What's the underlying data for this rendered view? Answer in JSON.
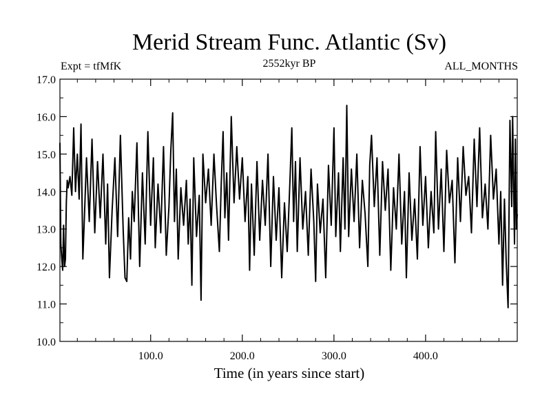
{
  "chart_data": {
    "type": "line",
    "title": "Merid Stream Func. Atlantic (Sv)",
    "subtitle_left": "Expt = tfMfK",
    "subtitle_center": "2552kyr BP",
    "subtitle_right": "ALL_MONTHS",
    "xlabel": "Time (in years since start)",
    "ylabel": "",
    "xlim": [
      1,
      500
    ],
    "ylim": [
      10.0,
      17.0
    ],
    "x_ticks": [
      {
        "value": 100,
        "label": "100.0"
      },
      {
        "value": 200,
        "label": "200.0"
      },
      {
        "value": 300,
        "label": "300.0"
      },
      {
        "value": 400,
        "label": "400.0"
      }
    ],
    "y_ticks": [
      {
        "value": 10,
        "label": "10.0"
      },
      {
        "value": 11,
        "label": "11.0"
      },
      {
        "value": 12,
        "label": "12.0"
      },
      {
        "value": 13,
        "label": "13.0"
      },
      {
        "value": 14,
        "label": "14.0"
      },
      {
        "value": 15,
        "label": "15.0"
      },
      {
        "value": 16,
        "label": "16.0"
      },
      {
        "value": 17,
        "label": "17.0"
      }
    ],
    "grid": false,
    "series": [
      {
        "name": "tfMfK",
        "color": "#000000",
        "points": [
          [
            1,
            15.3
          ],
          [
            2,
            12.6
          ],
          [
            3,
            12.2
          ],
          [
            4,
            11.9
          ],
          [
            5,
            13.1
          ],
          [
            6,
            12.0
          ],
          [
            7,
            12.2
          ],
          [
            8,
            13.7
          ],
          [
            9,
            14.3
          ],
          [
            10,
            14.1
          ],
          [
            12,
            14.4
          ],
          [
            14,
            13.9
          ],
          [
            16,
            15.7
          ],
          [
            18,
            14.0
          ],
          [
            20,
            15.0
          ],
          [
            22,
            13.8
          ],
          [
            24,
            15.8
          ],
          [
            26,
            12.2
          ],
          [
            28,
            13.5
          ],
          [
            30,
            14.9
          ],
          [
            33,
            13.2
          ],
          [
            36,
            15.4
          ],
          [
            39,
            12.9
          ],
          [
            42,
            14.8
          ],
          [
            45,
            13.3
          ],
          [
            48,
            15.0
          ],
          [
            51,
            12.6
          ],
          [
            53,
            14.2
          ],
          [
            55,
            11.7
          ],
          [
            58,
            13.5
          ],
          [
            61,
            14.9
          ],
          [
            64,
            12.8
          ],
          [
            67,
            15.5
          ],
          [
            70,
            13.0
          ],
          [
            72,
            11.7
          ],
          [
            74,
            11.6
          ],
          [
            76,
            13.3
          ],
          [
            78,
            12.2
          ],
          [
            80,
            14.0
          ],
          [
            82,
            13.2
          ],
          [
            85,
            15.3
          ],
          [
            88,
            12.0
          ],
          [
            91,
            14.5
          ],
          [
            94,
            12.6
          ],
          [
            97,
            15.6
          ],
          [
            100,
            13.1
          ],
          [
            103,
            14.9
          ],
          [
            105,
            12.5
          ],
          [
            108,
            14.2
          ],
          [
            111,
            12.9
          ],
          [
            114,
            15.2
          ],
          [
            117,
            12.3
          ],
          [
            120,
            13.6
          ],
          [
            122,
            15.1
          ],
          [
            124,
            16.1
          ],
          [
            126,
            13.2
          ],
          [
            128,
            14.6
          ],
          [
            130,
            12.2
          ],
          [
            133,
            14.1
          ],
          [
            136,
            13.1
          ],
          [
            139,
            14.3
          ],
          [
            141,
            12.6
          ],
          [
            143,
            13.8
          ],
          [
            145,
            11.5
          ],
          [
            147,
            14.9
          ],
          [
            150,
            12.8
          ],
          [
            153,
            13.9
          ],
          [
            155,
            11.1
          ],
          [
            157,
            15.0
          ],
          [
            160,
            13.7
          ],
          [
            163,
            14.6
          ],
          [
            166,
            13.1
          ],
          [
            169,
            15.0
          ],
          [
            172,
            13.6
          ],
          [
            175,
            12.4
          ],
          [
            177,
            14.2
          ],
          [
            179,
            15.6
          ],
          [
            181,
            13.3
          ],
          [
            183,
            14.5
          ],
          [
            185,
            12.7
          ],
          [
            188,
            16.0
          ],
          [
            191,
            13.7
          ],
          [
            194,
            15.2
          ],
          [
            197,
            13.8
          ],
          [
            200,
            14.9
          ],
          [
            203,
            13.2
          ],
          [
            206,
            14.4
          ],
          [
            208,
            11.9
          ],
          [
            210,
            14.2
          ],
          [
            213,
            12.3
          ],
          [
            216,
            14.8
          ],
          [
            219,
            12.7
          ],
          [
            222,
            14.3
          ],
          [
            225,
            13.1
          ],
          [
            228,
            15.0
          ],
          [
            231,
            12.0
          ],
          [
            234,
            14.4
          ],
          [
            237,
            12.7
          ],
          [
            240,
            14.1
          ],
          [
            243,
            11.7
          ],
          [
            246,
            13.7
          ],
          [
            249,
            12.4
          ],
          [
            252,
            14.3
          ],
          [
            254,
            15.7
          ],
          [
            256,
            13.2
          ],
          [
            258,
            14.8
          ],
          [
            260,
            12.4
          ],
          [
            263,
            14.9
          ],
          [
            266,
            13.0
          ],
          [
            269,
            14.0
          ],
          [
            272,
            12.3
          ],
          [
            275,
            14.6
          ],
          [
            278,
            13.2
          ],
          [
            280,
            11.6
          ],
          [
            282,
            14.2
          ],
          [
            285,
            12.9
          ],
          [
            288,
            13.8
          ],
          [
            291,
            11.7
          ],
          [
            294,
            14.7
          ],
          [
            297,
            13.1
          ],
          [
            300,
            15.7
          ],
          [
            302,
            12.8
          ],
          [
            305,
            14.5
          ],
          [
            307,
            12.4
          ],
          [
            310,
            14.9
          ],
          [
            312,
            13.0
          ],
          [
            314,
            16.3
          ],
          [
            316,
            12.8
          ],
          [
            319,
            14.6
          ],
          [
            322,
            13.2
          ],
          [
            325,
            15.0
          ],
          [
            328,
            12.5
          ],
          [
            331,
            14.3
          ],
          [
            334,
            13.4
          ],
          [
            337,
            12.0
          ],
          [
            339,
            14.7
          ],
          [
            341,
            15.5
          ],
          [
            344,
            13.6
          ],
          [
            347,
            14.9
          ],
          [
            350,
            12.3
          ],
          [
            353,
            14.8
          ],
          [
            356,
            13.5
          ],
          [
            359,
            14.6
          ],
          [
            362,
            11.9
          ],
          [
            365,
            14.1
          ],
          [
            368,
            13.0
          ],
          [
            371,
            15.0
          ],
          [
            374,
            12.6
          ],
          [
            377,
            14.0
          ],
          [
            379,
            11.7
          ],
          [
            382,
            14.5
          ],
          [
            385,
            12.7
          ],
          [
            388,
            13.8
          ],
          [
            391,
            12.2
          ],
          [
            394,
            15.2
          ],
          [
            397,
            13.1
          ],
          [
            400,
            14.4
          ],
          [
            403,
            12.5
          ],
          [
            406,
            14.0
          ],
          [
            409,
            12.9
          ],
          [
            411,
            15.6
          ],
          [
            414,
            13.0
          ],
          [
            417,
            14.6
          ],
          [
            420,
            12.4
          ],
          [
            423,
            15.1
          ],
          [
            426,
            13.7
          ],
          [
            429,
            14.3
          ],
          [
            432,
            12.1
          ],
          [
            435,
            14.9
          ],
          [
            438,
            13.2
          ],
          [
            441,
            15.2
          ],
          [
            444,
            13.9
          ],
          [
            447,
            14.4
          ],
          [
            450,
            12.9
          ],
          [
            453,
            15.4
          ],
          [
            456,
            13.6
          ],
          [
            459,
            15.7
          ],
          [
            462,
            13.3
          ],
          [
            465,
            14.2
          ],
          [
            468,
            13.0
          ],
          [
            471,
            15.5
          ],
          [
            474,
            13.8
          ],
          [
            477,
            14.6
          ],
          [
            480,
            12.6
          ],
          [
            482,
            14.0
          ],
          [
            484,
            11.5
          ],
          [
            486,
            13.8
          ],
          [
            488,
            12.1
          ],
          [
            490,
            10.9
          ],
          [
            492,
            15.9
          ],
          [
            494,
            13.6
          ],
          [
            495,
            16.0
          ],
          [
            496,
            14.2
          ],
          [
            497,
            12.6
          ],
          [
            498,
            15.4
          ],
          [
            499,
            13.0
          ],
          [
            500,
            13.4
          ]
        ]
      }
    ]
  }
}
